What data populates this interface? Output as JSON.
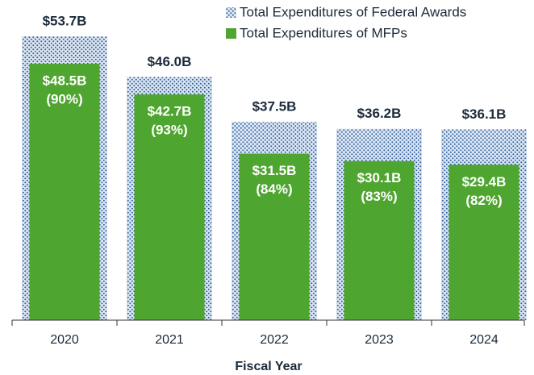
{
  "chart_data": {
    "type": "bar",
    "x_label": "Fiscal Year",
    "categories": [
      "2020",
      "2021",
      "2022",
      "2023",
      "2024"
    ],
    "series": [
      {
        "name": "Total Expenditures of Federal Awards",
        "color": "#2f5f9e",
        "pattern": "dotted",
        "values": [
          53.7,
          46.0,
          37.5,
          36.2,
          36.1
        ],
        "value_labels": [
          "$53.7B",
          "$46.0B",
          "$37.5B",
          "$36.2B",
          "$36.1B"
        ]
      },
      {
        "name": "Total Expenditures of MFPs",
        "color": "#4ea52f",
        "values": [
          48.5,
          42.7,
          31.5,
          30.1,
          29.4
        ],
        "value_labels": [
          "$48.5B",
          "$42.7B",
          "$31.5B",
          "$30.1B",
          "$29.4B"
        ],
        "share_labels": [
          "(90%)",
          "(93%)",
          "(84%)",
          "(83%)",
          "(82%)"
        ]
      }
    ],
    "legend": "top-right"
  }
}
